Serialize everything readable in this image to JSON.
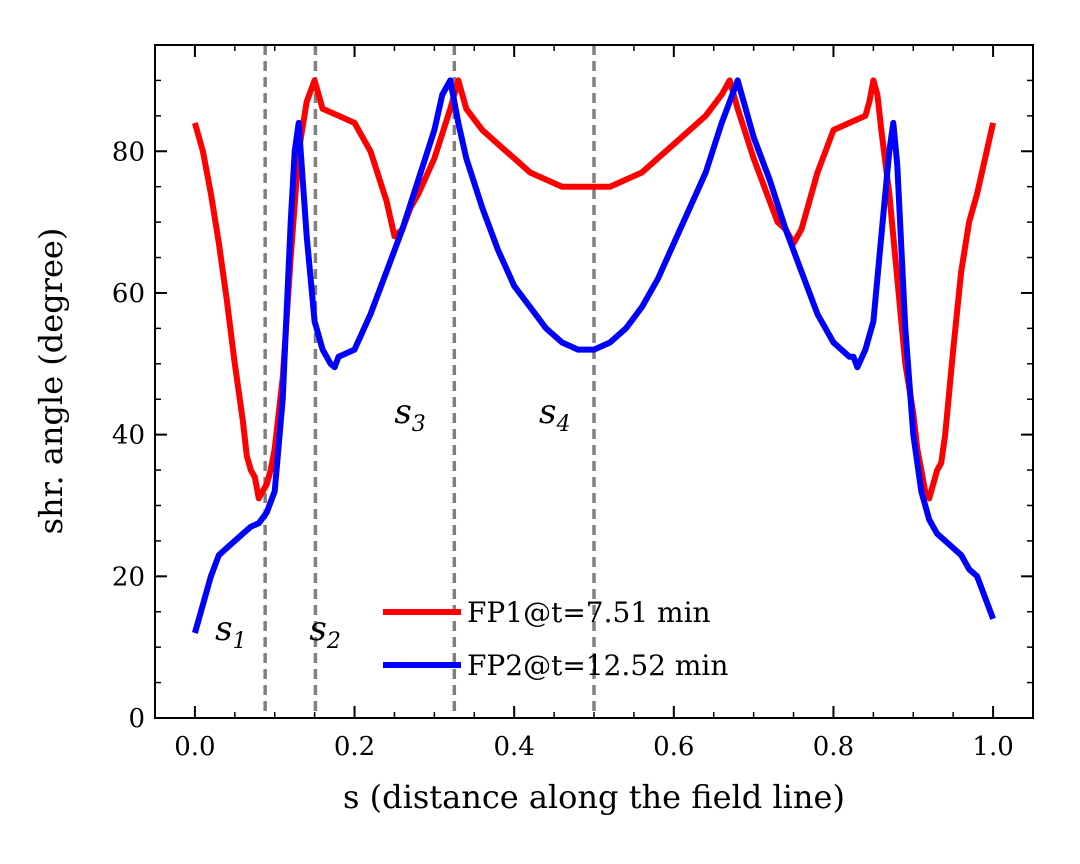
{
  "chart_data": {
    "type": "line",
    "title": "",
    "xlabel": "s (distance along the field line)",
    "ylabel": "shr. angle (degree)",
    "xlim": [
      -0.05,
      1.05
    ],
    "ylim": [
      0,
      95
    ],
    "xticks": [
      "0.0",
      "0.2",
      "0.4",
      "0.6",
      "0.8",
      "1.0"
    ],
    "xtick_values": [
      0,
      0.2,
      0.4,
      0.6,
      0.8,
      1.0
    ],
    "yticks": [
      "0",
      "20",
      "40",
      "60",
      "80"
    ],
    "ytick_values": [
      0,
      20,
      40,
      60,
      80
    ],
    "x_minor_step": 0.05,
    "y_minor_step": 5,
    "grid": false,
    "legend_position": "lower-center",
    "series": [
      {
        "name": "FP1@t=7.51 min",
        "color": "#ff0000",
        "x": [
          0.0,
          0.01,
          0.02,
          0.03,
          0.04,
          0.05,
          0.06,
          0.065,
          0.07,
          0.075,
          0.08,
          0.085,
          0.09,
          0.095,
          0.1,
          0.11,
          0.12,
          0.13,
          0.14,
          0.15,
          0.155,
          0.16,
          0.18,
          0.2,
          0.22,
          0.24,
          0.25,
          0.26,
          0.27,
          0.28,
          0.3,
          0.32,
          0.33,
          0.34,
          0.36,
          0.38,
          0.4,
          0.42,
          0.44,
          0.46,
          0.48,
          0.5,
          0.52,
          0.54,
          0.56,
          0.58,
          0.6,
          0.62,
          0.64,
          0.66,
          0.67,
          0.68,
          0.7,
          0.72,
          0.73,
          0.74,
          0.75,
          0.76,
          0.78,
          0.8,
          0.82,
          0.84,
          0.845,
          0.85,
          0.855,
          0.86,
          0.87,
          0.88,
          0.89,
          0.9,
          0.905,
          0.91,
          0.915,
          0.92,
          0.925,
          0.93,
          0.935,
          0.94,
          0.95,
          0.96,
          0.97,
          0.98,
          0.99,
          1.0
        ],
        "y": [
          84,
          80,
          74,
          67,
          59,
          50,
          42,
          37,
          35,
          34,
          31,
          32,
          33,
          35,
          38,
          48,
          65,
          80,
          87,
          90,
          88,
          86,
          85,
          84,
          80,
          73,
          68,
          69,
          72,
          74,
          79,
          86,
          90,
          86,
          83,
          81,
          79,
          77,
          76,
          75,
          75,
          75,
          75,
          76,
          77,
          79,
          81,
          83,
          85,
          88,
          90,
          86,
          79,
          73,
          70,
          69,
          67,
          69,
          77,
          83,
          84,
          85,
          87,
          90,
          88,
          83,
          74,
          62,
          50,
          43,
          38,
          35,
          32,
          31,
          33,
          35,
          36,
          40,
          52,
          63,
          70,
          74,
          79,
          84
        ]
      },
      {
        "name": "FP2@t=12.52 min",
        "color": "#0000ff",
        "x": [
          0.0,
          0.01,
          0.02,
          0.03,
          0.04,
          0.05,
          0.06,
          0.07,
          0.08,
          0.09,
          0.1,
          0.11,
          0.12,
          0.125,
          0.13,
          0.14,
          0.15,
          0.16,
          0.17,
          0.175,
          0.18,
          0.2,
          0.22,
          0.24,
          0.26,
          0.28,
          0.3,
          0.31,
          0.32,
          0.33,
          0.34,
          0.36,
          0.38,
          0.4,
          0.42,
          0.44,
          0.46,
          0.48,
          0.5,
          0.52,
          0.54,
          0.56,
          0.58,
          0.6,
          0.62,
          0.64,
          0.66,
          0.67,
          0.68,
          0.69,
          0.7,
          0.72,
          0.74,
          0.76,
          0.78,
          0.8,
          0.82,
          0.825,
          0.83,
          0.84,
          0.85,
          0.86,
          0.87,
          0.875,
          0.88,
          0.89,
          0.9,
          0.91,
          0.92,
          0.93,
          0.94,
          0.95,
          0.96,
          0.97,
          0.98,
          0.99,
          1.0
        ],
        "y": [
          12,
          16,
          20,
          23,
          24,
          25,
          26,
          27,
          27.5,
          29,
          32,
          45,
          70,
          80,
          84,
          68,
          56,
          52,
          50,
          49.5,
          51,
          52,
          57,
          63,
          69,
          76,
          83,
          88,
          90,
          84,
          79,
          72,
          66,
          61,
          58,
          55,
          53,
          52,
          52,
          53,
          55,
          58,
          62,
          67,
          72,
          77,
          84,
          87,
          90,
          86,
          82,
          76,
          69,
          63,
          57,
          53,
          51,
          51,
          49.5,
          52,
          56,
          68,
          80,
          84,
          78,
          55,
          40,
          32,
          28,
          26,
          25,
          24,
          23,
          21,
          20,
          17,
          14
        ]
      }
    ],
    "markers": [
      {
        "label": "s",
        "sub": "1",
        "x": 0.088
      },
      {
        "label": "s",
        "sub": "2",
        "x": 0.151
      },
      {
        "label": "s",
        "sub": "3",
        "x": 0.325
      },
      {
        "label": "s",
        "sub": "4",
        "x": 0.5
      }
    ],
    "marker_color": "#808080"
  }
}
